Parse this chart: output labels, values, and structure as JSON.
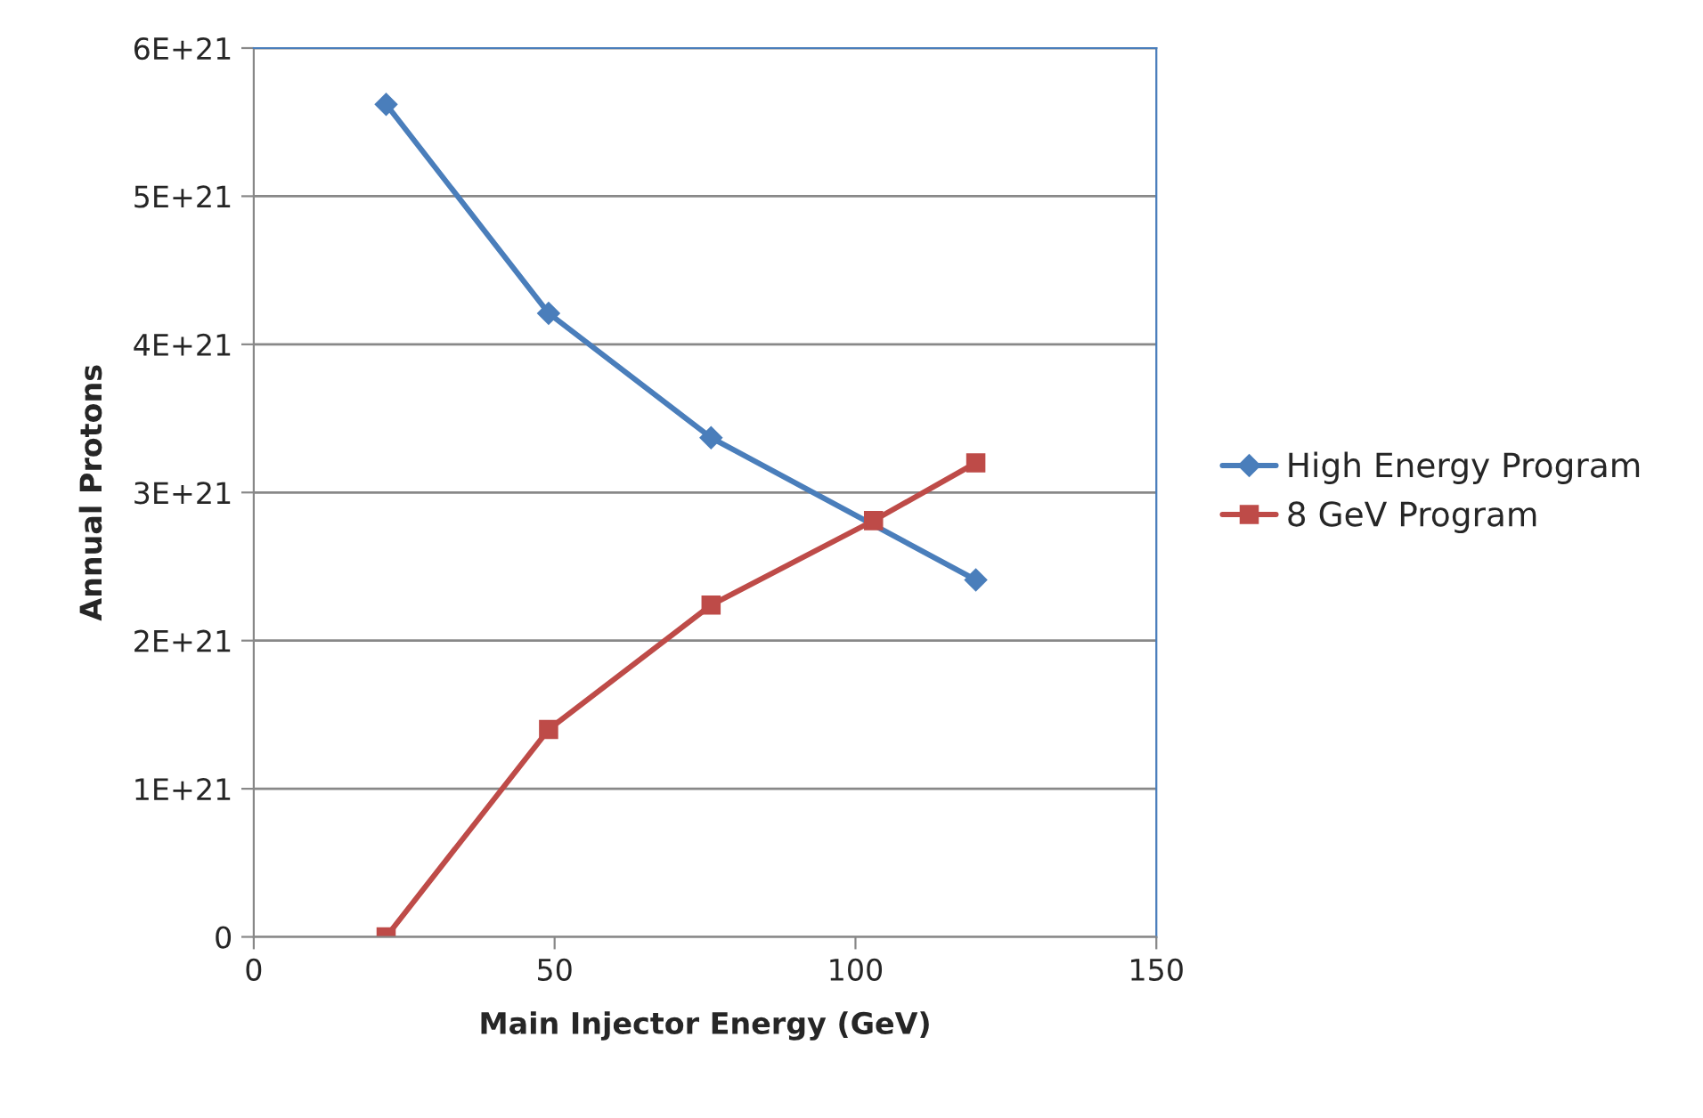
{
  "chart_data": {
    "type": "line",
    "xlabel": "Main Injector Energy (GeV)",
    "ylabel": "Annual Protons",
    "xlim": [
      0,
      150
    ],
    "xticks": [
      0,
      50,
      100,
      150
    ],
    "ylim": [
      0,
      6e+21
    ],
    "yticks": [
      {
        "value": 0,
        "label": "0"
      },
      {
        "value": 1e+21,
        "label": "1E+21"
      },
      {
        "value": 2e+21,
        "label": "2E+21"
      },
      {
        "value": 3e+21,
        "label": "3E+21"
      },
      {
        "value": 4e+21,
        "label": "4E+21"
      },
      {
        "value": 5e+21,
        "label": "5E+21"
      },
      {
        "value": 6e+21,
        "label": "6E+21"
      }
    ],
    "grid": "y",
    "legend": "right",
    "series": [
      {
        "name": "High Energy Program",
        "color": "#4a7ebb",
        "marker": "diamond",
        "x": [
          22,
          49,
          76,
          120
        ],
        "values": [
          5.62e+21,
          4.21e+21,
          3.37e+21,
          2.41e+21
        ]
      },
      {
        "name": "8 GeV Program",
        "color": "#be4b48",
        "marker": "square",
        "x": [
          22,
          49,
          76,
          103,
          120
        ],
        "values": [
          0,
          1.4e+21,
          2.24e+21,
          2.81e+21,
          3.2e+21
        ]
      }
    ]
  }
}
